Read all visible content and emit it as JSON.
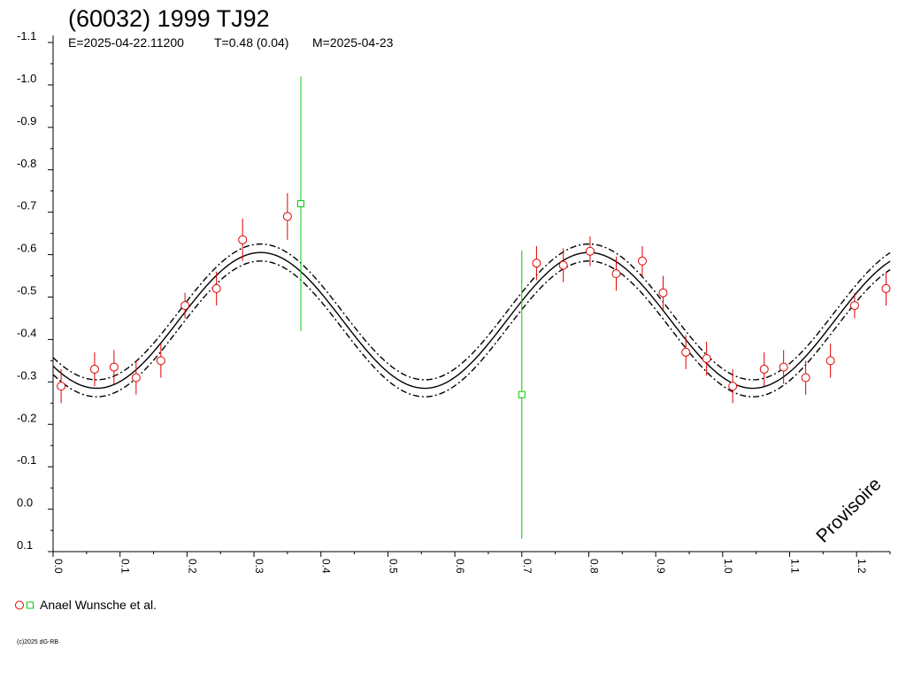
{
  "chart_data": {
    "type": "scatter",
    "title": "(60032) 1999 TJ92",
    "subtitle": {
      "epoch": "E=2025-04-22.11200",
      "period": "T=0.48 (0.04)",
      "mid_date": "M=2025-04-23"
    },
    "watermark": "Provisoire",
    "copyright": "(c)2025 dG-RB",
    "xlim": [
      0,
      1.25
    ],
    "ylim": [
      0.1,
      -1.1
    ],
    "y_inverted": true,
    "x_ticks": [
      "0.0",
      "0.1",
      "0.2",
      "0.3",
      "0.4",
      "0.5",
      "0.6",
      "0.7",
      "0.8",
      "0.9",
      "1.0",
      "1.1",
      "1.2"
    ],
    "y_ticks": [
      "-1.1",
      "-1.0",
      "-0.9",
      "-0.8",
      "-0.7",
      "-0.6",
      "-0.5",
      "-0.4",
      "-0.3",
      "-0.2",
      "-0.1",
      "0.0",
      "0.1"
    ],
    "grid": false,
    "legend_position": "bottom-left",
    "legend_label": "Anael Wunsche et al.",
    "fit": {
      "period_phase": 0.49,
      "mean": -0.445,
      "amplitude": 0.16,
      "peak_phase": 0.31,
      "band_offset": 0.02
    },
    "series": [
      {
        "marker": "circle",
        "color": "#e00000",
        "points": [
          {
            "x": 0.012,
            "y": -0.29,
            "err": 0.04
          },
          {
            "x": 0.062,
            "y": -0.33,
            "err": 0.04
          },
          {
            "x": 0.091,
            "y": -0.335,
            "err": 0.04
          },
          {
            "x": 0.124,
            "y": -0.31,
            "err": 0.04
          },
          {
            "x": 0.161,
            "y": -0.35,
            "err": 0.04
          },
          {
            "x": 0.197,
            "y": -0.48,
            "err": 0.03
          },
          {
            "x": 0.244,
            "y": -0.52,
            "err": 0.04
          },
          {
            "x": 0.283,
            "y": -0.635,
            "err": 0.05
          },
          {
            "x": 0.35,
            "y": -0.69,
            "err": 0.055
          },
          {
            "x": 0.722,
            "y": -0.58,
            "err": 0.04
          },
          {
            "x": 0.762,
            "y": -0.575,
            "err": 0.04
          },
          {
            "x": 0.802,
            "y": -0.608,
            "err": 0.035
          },
          {
            "x": 0.841,
            "y": -0.555,
            "err": 0.04
          },
          {
            "x": 0.88,
            "y": -0.585,
            "err": 0.035
          },
          {
            "x": 0.911,
            "y": -0.51,
            "err": 0.04
          },
          {
            "x": 0.945,
            "y": -0.37,
            "err": 0.04
          },
          {
            "x": 0.976,
            "y": -0.355,
            "err": 0.04
          },
          {
            "x": 1.015,
            "y": -0.29,
            "err": 0.04
          },
          {
            "x": 1.062,
            "y": -0.33,
            "err": 0.04
          },
          {
            "x": 1.091,
            "y": -0.335,
            "err": 0.04
          },
          {
            "x": 1.124,
            "y": -0.31,
            "err": 0.04
          },
          {
            "x": 1.161,
            "y": -0.35,
            "err": 0.04
          },
          {
            "x": 1.197,
            "y": -0.48,
            "err": 0.03
          },
          {
            "x": 1.244,
            "y": -0.52,
            "err": 0.04
          }
        ]
      },
      {
        "marker": "square",
        "color": "#00cc00",
        "points": [
          {
            "x": 0.37,
            "y": -0.72,
            "err": 0.3
          },
          {
            "x": 0.7,
            "y": -0.27,
            "err": 0.34
          }
        ]
      }
    ]
  }
}
